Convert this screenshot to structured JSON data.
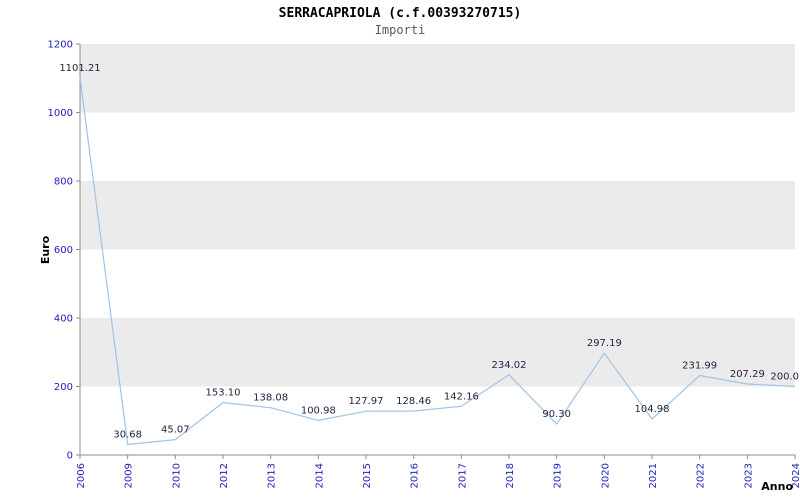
{
  "page": {
    "title": "SERRACAPRIOLA (c.f.00393270715)",
    "subtitle": "Importi"
  },
  "chart_data": {
    "type": "line",
    "title": "SERRACAPRIOLA (c.f.00393270715)",
    "subtitle": "Importi",
    "xlabel": "Anno",
    "ylabel": "Euro",
    "categories": [
      "2006",
      "2009",
      "2010",
      "2012",
      "2013",
      "2014",
      "2015",
      "2016",
      "2017",
      "2018",
      "2019",
      "2020",
      "2021",
      "2022",
      "2023",
      "2024"
    ],
    "values": [
      1101.21,
      30.68,
      45.07,
      153.1,
      138.08,
      100.98,
      127.97,
      128.46,
      142.16,
      234.02,
      90.3,
      297.19,
      104.98,
      231.99,
      207.29,
      200.0
    ],
    "point_labels": [
      "1101.21",
      "30.68",
      "45.07",
      "153.10",
      "138.08",
      "100.98",
      "127.97",
      "128.46",
      "142.16",
      "234.02",
      "90.30",
      "297.19",
      "104.98",
      "231.99",
      "207.29",
      "200.0"
    ],
    "ylim": [
      0,
      1200
    ],
    "yticks": [
      0,
      200,
      400,
      600,
      800,
      1000,
      1200
    ],
    "legend": "none",
    "grid": "alternating-horizontal-bands",
    "colors": {
      "line": "#a3c3e3",
      "band": "#ebebeb",
      "axis": "#8c8c8c",
      "tick_label": "#2222bb",
      "value_label": "#25253f",
      "title": "#000000",
      "subtitle": "#595959"
    }
  }
}
